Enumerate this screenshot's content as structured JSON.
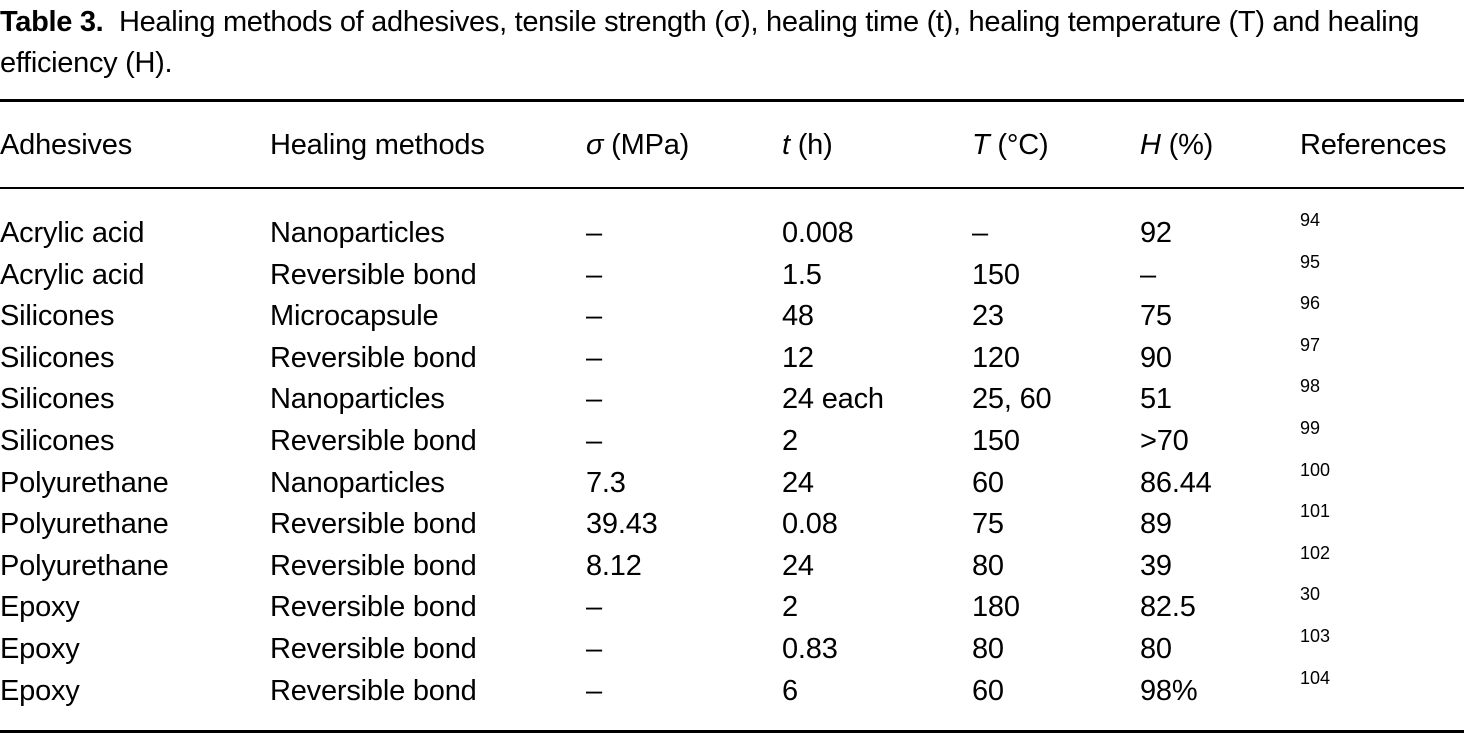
{
  "caption": {
    "label": "Table 3.",
    "text": "Healing methods of adhesives, tensile strength (σ), healing time (t), healing temperature (T) and healing efficiency (H)."
  },
  "headers": [
    {
      "sym": "",
      "text": "Adhesives"
    },
    {
      "sym": "",
      "text": "Healing methods"
    },
    {
      "sym": "σ",
      "text": " (MPa)"
    },
    {
      "sym": "t",
      "text": " (h)"
    },
    {
      "sym": "T",
      "text": " (°C)"
    },
    {
      "sym": "H",
      "text": " (%)"
    },
    {
      "sym": "",
      "text": "References"
    }
  ],
  "rows": [
    [
      "Acrylic acid",
      "Nanoparticles",
      "–",
      "0.008",
      "–",
      "92",
      "94"
    ],
    [
      "Acrylic acid",
      "Reversible bond",
      "–",
      "1.5",
      "150",
      "–",
      "95"
    ],
    [
      "Silicones",
      "Microcapsule",
      "–",
      "48",
      "23",
      "75",
      "96"
    ],
    [
      "Silicones",
      "Reversible bond",
      "–",
      "12",
      "120",
      "90",
      "97"
    ],
    [
      "Silicones",
      "Nanoparticles",
      "–",
      "24 each",
      "25, 60",
      "51",
      "98"
    ],
    [
      "Silicones",
      "Reversible bond",
      "–",
      "2",
      "150",
      ">70",
      "99"
    ],
    [
      "Polyurethane",
      "Nanoparticles",
      "7.3",
      "24",
      "60",
      "86.44",
      "100"
    ],
    [
      "Polyurethane",
      "Reversible bond",
      "39.43",
      "0.08",
      "75",
      "89",
      "101"
    ],
    [
      "Polyurethane",
      "Reversible bond",
      "8.12",
      "24",
      "80",
      "39",
      "102"
    ],
    [
      "Epoxy",
      "Reversible bond",
      "–",
      "2",
      "180",
      "82.5",
      "30"
    ],
    [
      "Epoxy",
      "Reversible bond",
      "–",
      "0.83",
      "80",
      "80",
      "103"
    ],
    [
      "Epoxy",
      "Reversible bond",
      "–",
      "6",
      "60",
      "98%",
      "104"
    ]
  ]
}
